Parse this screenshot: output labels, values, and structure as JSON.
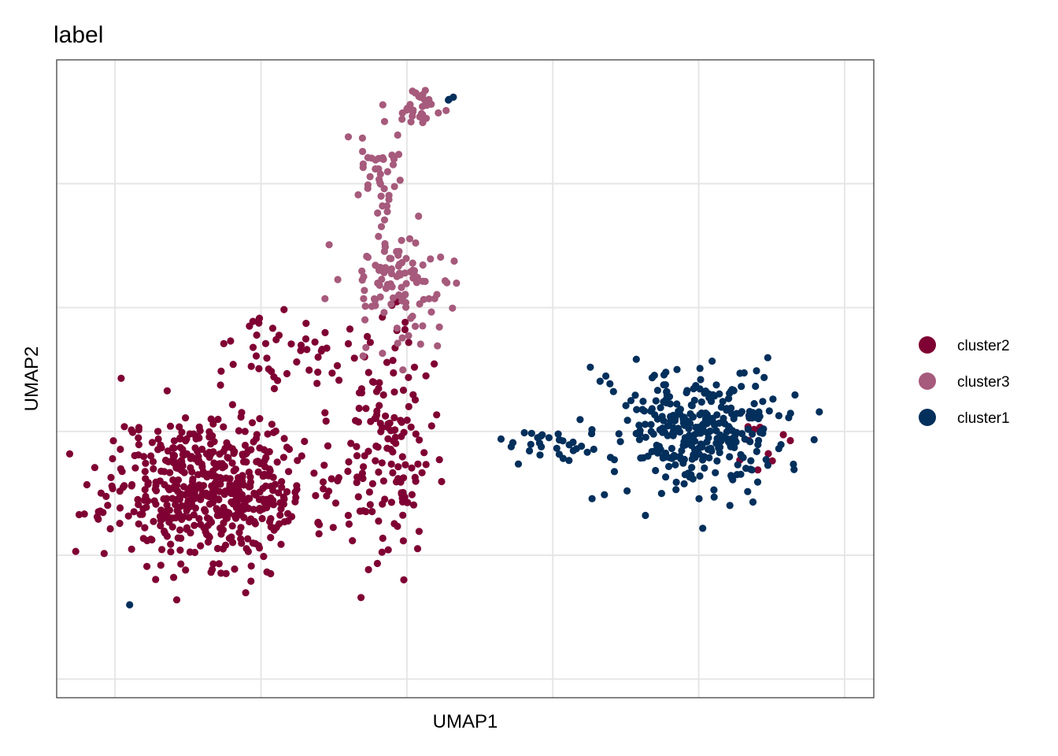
{
  "chart_data": {
    "type": "scatter",
    "title": "label",
    "xlabel": "UMAP1",
    "ylabel": "UMAP2",
    "xlim": [
      -0.4,
      5.2
    ],
    "ylim": [
      -0.15,
      5.0
    ],
    "x_gridlines": [
      0,
      1,
      2,
      3,
      4,
      5
    ],
    "y_gridlines": [
      0,
      1,
      2,
      3,
      4
    ],
    "grid": true,
    "tick_labels": false,
    "legend_position": "right",
    "series": [
      {
        "name": "cluster2",
        "color": "#7F0133",
        "clusters": [
          {
            "center": [
              0.65,
              1.55
            ],
            "spread": [
              0.62,
              0.55
            ],
            "count": 560,
            "seed": 11
          },
          {
            "center": [
              1.85,
              1.85
            ],
            "spread": [
              0.28,
              0.85
            ],
            "count": 150,
            "seed": 23
          },
          {
            "center": [
              1.2,
              2.65
            ],
            "spread": [
              0.35,
              0.25
            ],
            "count": 45,
            "seed": 37
          },
          {
            "center": [
              4.4,
              1.9
            ],
            "spread": [
              0.25,
              0.25
            ],
            "count": 10,
            "seed": 41
          }
        ]
      },
      {
        "name": "cluster3",
        "color": "#A65A7C",
        "clusters": [
          {
            "center": [
              1.95,
              3.2
            ],
            "spread": [
              0.35,
              0.45
            ],
            "count": 110,
            "seed": 53
          },
          {
            "center": [
              1.82,
              4.05
            ],
            "spread": [
              0.14,
              0.28
            ],
            "count": 40,
            "seed": 59
          },
          {
            "center": [
              2.1,
              4.6
            ],
            "spread": [
              0.14,
              0.14
            ],
            "count": 30,
            "seed": 67
          }
        ]
      },
      {
        "name": "cluster1",
        "color": "#022F5B",
        "clusters": [
          {
            "center": [
              4.0,
              2.0
            ],
            "spread": [
              0.55,
              0.45
            ],
            "count": 330,
            "seed": 71
          },
          {
            "center": [
              2.95,
              1.9
            ],
            "spread": [
              0.28,
              0.12
            ],
            "count": 30,
            "seed": 79
          },
          {
            "center": [
              2.3,
              4.7
            ],
            "spread": [
              0.06,
              0.04
            ],
            "count": 3,
            "seed": 83
          }
        ],
        "points": [
          [
            0.1,
            0.6
          ]
        ]
      }
    ]
  }
}
